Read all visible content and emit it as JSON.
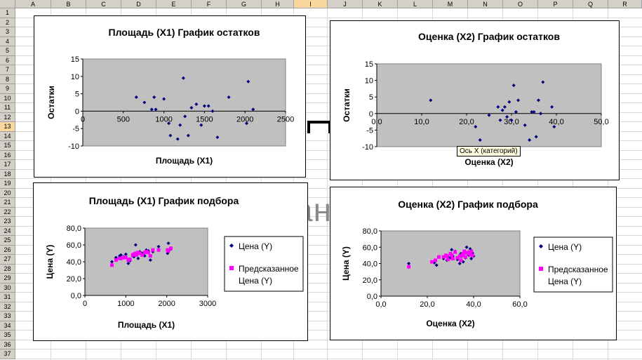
{
  "spreadsheet": {
    "columns": [
      "A",
      "B",
      "C",
      "D",
      "E",
      "F",
      "G",
      "H",
      "I",
      "J",
      "K",
      "L",
      "M",
      "N",
      "O",
      "P",
      "Q",
      "R"
    ],
    "selected_column": "I",
    "rows": [
      "1",
      "2",
      "3",
      "4",
      "5",
      "6",
      "7",
      "8",
      "9",
      "10",
      "11",
      "12",
      "13",
      "14",
      "15",
      "16",
      "17",
      "18",
      "19",
      "20",
      "21",
      "22",
      "23",
      "24",
      "25",
      "26",
      "27",
      "28",
      "29",
      "30",
      "31",
      "32",
      "33",
      "34",
      "35",
      "36",
      "37"
    ],
    "selected_row": "13",
    "background_fragment": "ан"
  },
  "tooltip": "Ось X (категорий)",
  "charts": {
    "chart1": {
      "chart_data": {
        "type": "scatter",
        "title": "Площадь (X1) График остатков",
        "xlabel": "Площадь (X1)",
        "ylabel": "Остатки",
        "xlim": [
          0,
          2500
        ],
        "ylim": [
          -10,
          15
        ],
        "x_ticks": [
          "0",
          "500",
          "1000",
          "1500",
          "2000",
          "2500"
        ],
        "y_ticks": [
          "-10",
          "-5",
          "0",
          "5",
          "10",
          "15"
        ],
        "series": [
          {
            "name": "Остатки",
            "color": "#000080",
            "marker": "diamond",
            "points": [
              [
                660,
                4
              ],
              [
                760,
                2.5
              ],
              [
                850,
                0.5
              ],
              [
                880,
                4
              ],
              [
                900,
                0.5
              ],
              [
                1000,
                3.5
              ],
              [
                1060,
                -3.5
              ],
              [
                1080,
                -7
              ],
              [
                1170,
                -8
              ],
              [
                1200,
                -4
              ],
              [
                1240,
                9.5
              ],
              [
                1260,
                -1.5
              ],
              [
                1300,
                -7
              ],
              [
                1340,
                1
              ],
              [
                1400,
                2
              ],
              [
                1460,
                -4
              ],
              [
                1500,
                1.5
              ],
              [
                1550,
                1.5
              ],
              [
                1600,
                0
              ],
              [
                1660,
                -7.5
              ],
              [
                1800,
                4
              ],
              [
                2020,
                -3.5
              ],
              [
                2040,
                8.5
              ],
              [
                2100,
                0.5
              ]
            ]
          }
        ],
        "legend": null
      }
    },
    "chart2": {
      "chart_data": {
        "type": "scatter",
        "title": "Оценка (X2) График остатков",
        "xlabel": "Оценка (X2)",
        "ylabel": "Остатки",
        "xlim": [
          0,
          50
        ],
        "ylim": [
          -10,
          15
        ],
        "x_ticks": [
          "0,0",
          "10,0",
          "20,0",
          "30,0",
          "40,0",
          "50,0"
        ],
        "y_ticks": [
          "-10",
          "-5",
          "0",
          "5",
          "10",
          "15"
        ],
        "series": [
          {
            "name": "Остатки",
            "color": "#000080",
            "marker": "diamond",
            "points": [
              [
                12,
                4
              ],
              [
                22,
                -4
              ],
              [
                23,
                -8
              ],
              [
                25,
                -0.5
              ],
              [
                27,
                2
              ],
              [
                27.5,
                -2
              ],
              [
                28,
                1
              ],
              [
                28.5,
                2
              ],
              [
                29,
                -1
              ],
              [
                29.5,
                3.5
              ],
              [
                30,
                -2
              ],
              [
                30.5,
                8.5
              ],
              [
                31,
                0.5
              ],
              [
                31.5,
                4
              ],
              [
                33,
                -3.5
              ],
              [
                34,
                -8
              ],
              [
                34.5,
                0.5
              ],
              [
                35,
                0.5
              ],
              [
                35.5,
                -7
              ],
              [
                36,
                4
              ],
              [
                36.5,
                0
              ],
              [
                37,
                9.5
              ],
              [
                39,
                2
              ],
              [
                39.5,
                -4
              ]
            ]
          }
        ],
        "legend": null
      }
    },
    "chart3": {
      "chart_data": {
        "type": "scatter",
        "title": "Площадь (X1) График подбора",
        "xlabel": "Площадь (X1)",
        "ylabel": "Цена (Y)",
        "xlim": [
          0,
          3000
        ],
        "ylim": [
          0,
          80
        ],
        "x_ticks": [
          "0",
          "1000",
          "2000",
          "3000"
        ],
        "y_ticks": [
          "0,0",
          "20,0",
          "40,0",
          "60,0",
          "80,0"
        ],
        "series": [
          {
            "name": "Цена (Y)",
            "color": "#000080",
            "marker": "diamond",
            "points": [
              [
                660,
                40
              ],
              [
                760,
                45
              ],
              [
                850,
                47
              ],
              [
                880,
                48
              ],
              [
                950,
                46
              ],
              [
                1000,
                49
              ],
              [
                1060,
                38
              ],
              [
                1100,
                41
              ],
              [
                1170,
                47
              ],
              [
                1200,
                46
              ],
              [
                1240,
                60
              ],
              [
                1260,
                49
              ],
              [
                1300,
                44
              ],
              [
                1340,
                52
              ],
              [
                1400,
                50
              ],
              [
                1460,
                47
              ],
              [
                1500,
                54
              ],
              [
                1550,
                53
              ],
              [
                1600,
                42
              ],
              [
                1660,
                52
              ],
              [
                1800,
                58
              ],
              [
                2020,
                50
              ],
              [
                2040,
                62
              ],
              [
                2100,
                55
              ]
            ]
          },
          {
            "name": "Предсказанное Цена (Y)",
            "color": "#ff00ff",
            "marker": "square",
            "points": [
              [
                660,
                36
              ],
              [
                760,
                42
              ],
              [
                850,
                44
              ],
              [
                880,
                44
              ],
              [
                950,
                45
              ],
              [
                1000,
                45
              ],
              [
                1060,
                42
              ],
              [
                1100,
                43
              ],
              [
                1170,
                48
              ],
              [
                1200,
                49
              ],
              [
                1240,
                50
              ],
              [
                1260,
                48
              ],
              [
                1300,
                51
              ],
              [
                1340,
                50
              ],
              [
                1400,
                48
              ],
              [
                1460,
                51
              ],
              [
                1500,
                52
              ],
              [
                1550,
                51
              ],
              [
                1600,
                47
              ],
              [
                1660,
                54
              ],
              [
                1800,
                54
              ],
              [
                2020,
                54
              ],
              [
                2040,
                53
              ],
              [
                2100,
                56
              ]
            ]
          }
        ],
        "legend": {
          "entries": [
            "Цена (Y)",
            "Предсказанное",
            "Цена (Y)"
          ]
        }
      }
    },
    "chart4": {
      "chart_data": {
        "type": "scatter",
        "title": "Оценка (X2) График подбора",
        "xlabel": "Оценка (X2)",
        "ylabel": "Цена (Y)",
        "xlim": [
          0,
          60
        ],
        "ylim": [
          0,
          80
        ],
        "x_ticks": [
          "0,0",
          "20,0",
          "40,0",
          "60,0"
        ],
        "y_ticks": [
          "0,0",
          "20,0",
          "40,0",
          "60,0",
          "80,0"
        ],
        "series": [
          {
            "name": "Цена (Y)",
            "color": "#000080",
            "marker": "diamond",
            "points": [
              [
                12,
                40
              ],
              [
                23,
                41
              ],
              [
                24,
                38
              ],
              [
                27,
                46
              ],
              [
                28,
                50
              ],
              [
                28.5,
                44
              ],
              [
                29,
                48
              ],
              [
                30,
                47
              ],
              [
                30.5,
                57
              ],
              [
                31,
                49
              ],
              [
                32,
                55
              ],
              [
                33,
                45
              ],
              [
                34,
                40
              ],
              [
                34.5,
                52
              ],
              [
                35,
                49
              ],
              [
                35.5,
                42
              ],
              [
                36,
                54
              ],
              [
                36.5,
                47
              ],
              [
                37,
                60
              ],
              [
                38,
                50
              ],
              [
                38.5,
                58
              ],
              [
                39,
                46
              ],
              [
                39.5,
                53
              ],
              [
                40,
                49
              ]
            ]
          },
          {
            "name": "Предсказанное Цена (Y)",
            "color": "#ff00ff",
            "marker": "square",
            "points": [
              [
                12,
                36
              ],
              [
                22,
                42
              ],
              [
                23.5,
                44
              ],
              [
                25,
                48
              ],
              [
                27,
                48
              ],
              [
                28,
                50
              ],
              [
                28.5,
                49
              ],
              [
                29,
                45
              ],
              [
                30,
                52
              ],
              [
                30.5,
                50
              ],
              [
                31,
                46
              ],
              [
                32,
                54
              ],
              [
                33,
                47
              ],
              [
                34,
                49
              ],
              [
                34.5,
                44
              ],
              [
                35,
                50
              ],
              [
                35.5,
                52
              ],
              [
                36,
                55
              ],
              [
                36.5,
                48
              ],
              [
                37,
                53
              ],
              [
                38,
                54
              ],
              [
                38.5,
                51
              ],
              [
                39,
                55
              ],
              [
                39.5,
                50
              ]
            ]
          }
        ],
        "legend": {
          "entries": [
            "Цена (Y)",
            "Предсказанное",
            "Цена (Y)"
          ]
        }
      }
    }
  }
}
